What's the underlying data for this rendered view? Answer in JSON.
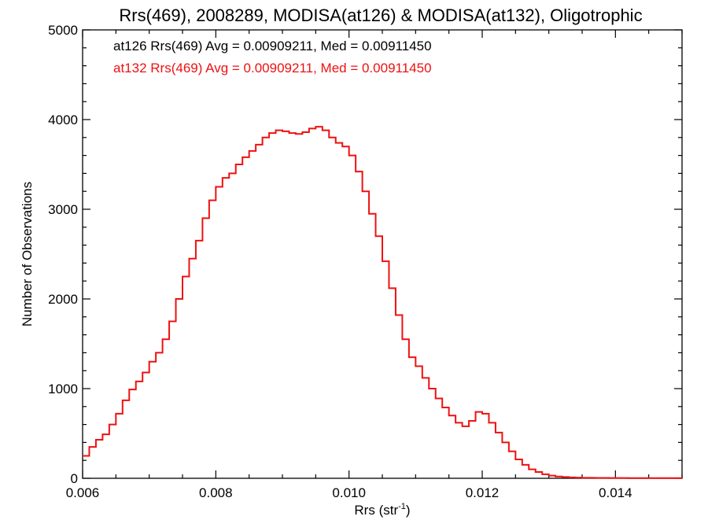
{
  "chart_data": {
    "type": "line",
    "title": "Rrs(469), 2008289, MODISA(at126) & MODISA(at132), Oligotrophic",
    "xlabel": "Rrs (str",
    "xlabel_superscript": "-1",
    "xlabel_suffix": ")",
    "ylabel": "Number of Observations",
    "xlim": [
      0.006,
      0.015
    ],
    "ylim": [
      0,
      5000
    ],
    "x_ticks": [
      0.006,
      0.008,
      0.01,
      0.012,
      0.014
    ],
    "x_tick_labels": [
      "0.006",
      "0.008",
      "0.010",
      "0.012",
      "0.014"
    ],
    "y_ticks": [
      0,
      1000,
      2000,
      3000,
      4000,
      5000
    ],
    "y_tick_labels": [
      "0",
      "1000",
      "2000",
      "3000",
      "4000",
      "5000"
    ],
    "grid": false,
    "step": true,
    "annotations": [
      {
        "text": "at126 Rrs(469) Avg = 0.00909211, Med = 0.00911450",
        "color": "#000000"
      },
      {
        "text": "at132 Rrs(469) Avg = 0.00909211, Med = 0.00911450",
        "color": "#ee1111"
      }
    ],
    "series": [
      {
        "color": "#ee1111",
        "x": [
          0.006,
          0.0061,
          0.0062,
          0.0063,
          0.0064,
          0.0065,
          0.0066,
          0.0067,
          0.0068,
          0.0069,
          0.007,
          0.0071,
          0.0072,
          0.0073,
          0.0074,
          0.0075,
          0.0076,
          0.0077,
          0.0078,
          0.0079,
          0.008,
          0.0081,
          0.0082,
          0.0083,
          0.0084,
          0.0085,
          0.0086,
          0.0087,
          0.0088,
          0.0089,
          0.009,
          0.0091,
          0.0092,
          0.0093,
          0.0094,
          0.0095,
          0.0096,
          0.0097,
          0.0098,
          0.0099,
          0.01,
          0.0101,
          0.0102,
          0.0103,
          0.0104,
          0.0105,
          0.0106,
          0.0107,
          0.0108,
          0.0109,
          0.011,
          0.0111,
          0.0112,
          0.0113,
          0.0114,
          0.0115,
          0.0116,
          0.0117,
          0.0118,
          0.0119,
          0.012,
          0.0121,
          0.0122,
          0.0123,
          0.0124,
          0.0125,
          0.0126,
          0.0127,
          0.0128,
          0.0129,
          0.013,
          0.0131,
          0.0132,
          0.0133,
          0.0134,
          0.0135,
          0.0136,
          0.0137,
          0.0138,
          0.0139,
          0.014,
          0.0141,
          0.0142,
          0.0143,
          0.0144,
          0.0145,
          0.0146,
          0.0147,
          0.0148,
          0.0149
        ],
        "values": [
          250,
          350,
          430,
          490,
          600,
          720,
          870,
          990,
          1080,
          1180,
          1300,
          1400,
          1550,
          1750,
          2000,
          2250,
          2450,
          2650,
          2900,
          3100,
          3250,
          3350,
          3400,
          3500,
          3580,
          3650,
          3720,
          3800,
          3850,
          3880,
          3870,
          3850,
          3840,
          3860,
          3900,
          3920,
          3880,
          3800,
          3740,
          3700,
          3600,
          3420,
          3200,
          2950,
          2700,
          2420,
          2120,
          1820,
          1550,
          1350,
          1250,
          1120,
          1000,
          890,
          790,
          700,
          620,
          580,
          640,
          740,
          720,
          620,
          510,
          400,
          300,
          210,
          150,
          100,
          70,
          45,
          30,
          20,
          14,
          10,
          8,
          6,
          5,
          4,
          4,
          3,
          3,
          3,
          2,
          2,
          2,
          2,
          2,
          2,
          2,
          2
        ]
      }
    ]
  }
}
